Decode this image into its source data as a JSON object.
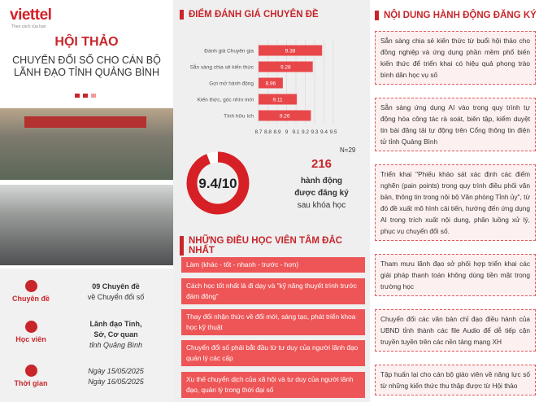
{
  "brand": {
    "name": "viettel",
    "slogan": "Theo cách của bạn"
  },
  "header": {
    "title": "HỘI THẢO",
    "subtitle_lines": [
      "CHUYỂN ĐỔI SỐ CHO CÁN BỘ",
      "LÃNH ĐẠO TỈNH QUẢNG BÌNH"
    ]
  },
  "info": [
    {
      "label": "Chuyên đề",
      "lines": [
        "09 Chuyên đề",
        "về Chuyển đổi số"
      ]
    },
    {
      "label": "Học viên",
      "lines": [
        "Lãnh đạo Tỉnh,",
        "Sở, Cơ quan",
        "tỉnh Quảng Bình"
      ]
    },
    {
      "label": "Thời gian",
      "lines": [
        "Ngày 15/05/2025",
        "Ngày 16/05/2025"
      ]
    }
  ],
  "chart_data": {
    "type": "bar",
    "orientation": "horizontal",
    "title": "ĐIỂM ĐÁNH GIÁ CHUYÊN ĐỀ",
    "categories": [
      "Đánh giá Chuyên gia",
      "Sẵn sàng chia sẻ kiến thức",
      "Gợi mở hành động",
      "Kiến thức, góc nhìn mới",
      "Tính hữu ích"
    ],
    "values": [
      9.38,
      9.28,
      8.96,
      9.11,
      9.26
    ],
    "color": "#e8474a",
    "xlim": [
      8.7,
      9.5
    ],
    "xticks": [
      8.7,
      8.8,
      8.9,
      9,
      9.1,
      9.2,
      9.3,
      9.4,
      9.5
    ],
    "grid": true
  },
  "score": {
    "value": 9.4,
    "max": 10,
    "label": "9.4/10",
    "sample": "N=29"
  },
  "actions_count": {
    "value": 216,
    "lines": [
      "hành động",
      "được đăng ký",
      "sau khóa học"
    ]
  },
  "takeaways": {
    "title": "NHỮNG ĐIỀU HỌC VIÊN TÂM ĐẮC NHẤT",
    "items": [
      "Làm (khác - tốt - nhanh - trước - hơn)",
      "Cách học tốt nhất là đi dạy và \"kỹ năng thuyết trình trước đám đông\"",
      "Thay đổi nhận thức về đổi mới, sáng tạo, phát triển khoa học kỹ thuật",
      "Chuyển đổi số phải bắt đầu từ tư duy của người lãnh đạo quản lý các cấp",
      "Xu thế chuyển dịch của xã hội và tư duy của người lãnh đạo, quản lý trong thời đại số"
    ]
  },
  "actions": {
    "title": "NỘI DUNG HÀNH ĐỘNG ĐĂNG KÝ",
    "items": [
      "Sẵn sàng chia sẻ kiến thức từ buổi hội thảo cho đồng nghiệp và ứng dụng phần mềm phổ biến kiến thức để triển khai có hiệu quả phong trào bình dân học vụ số",
      "Sẵn sàng ứng dụng AI vào trong quy trình tự động hóa công tác rà soát, biên tập, kiểm duyệt tin bài đăng tải tự động trên Cổng thông tin điện tử tỉnh Quảng Bình",
      "Triển khai \"Phiếu khảo sát xác định các điểm nghẽn (pain points) trong quy trình điều phối văn bản, thông tin trong nội bộ Văn phòng Tỉnh ủy\", từ đó đề xuất mô hình cải tiến, hướng đến ứng dụng AI trong trích xuất nội dung, phân luồng xử lý, phục vụ chuyển đổi số.",
      "Tham mưu lãnh đạo sở phối hợp triển khai các giải pháp thanh toán không dùng tiền mặt trong trường học",
      "Chuyển đổi các văn bản chỉ đạo điều hành của UBND tỉnh thành các file Audio để dễ tiếp cận truyền tuyền trên các nền tảng mạng XH",
      "Tập huấn lại cho cán bộ giáo viên về năng lực số từ những kiến thức thu thập được từ Hội thảo"
    ]
  }
}
